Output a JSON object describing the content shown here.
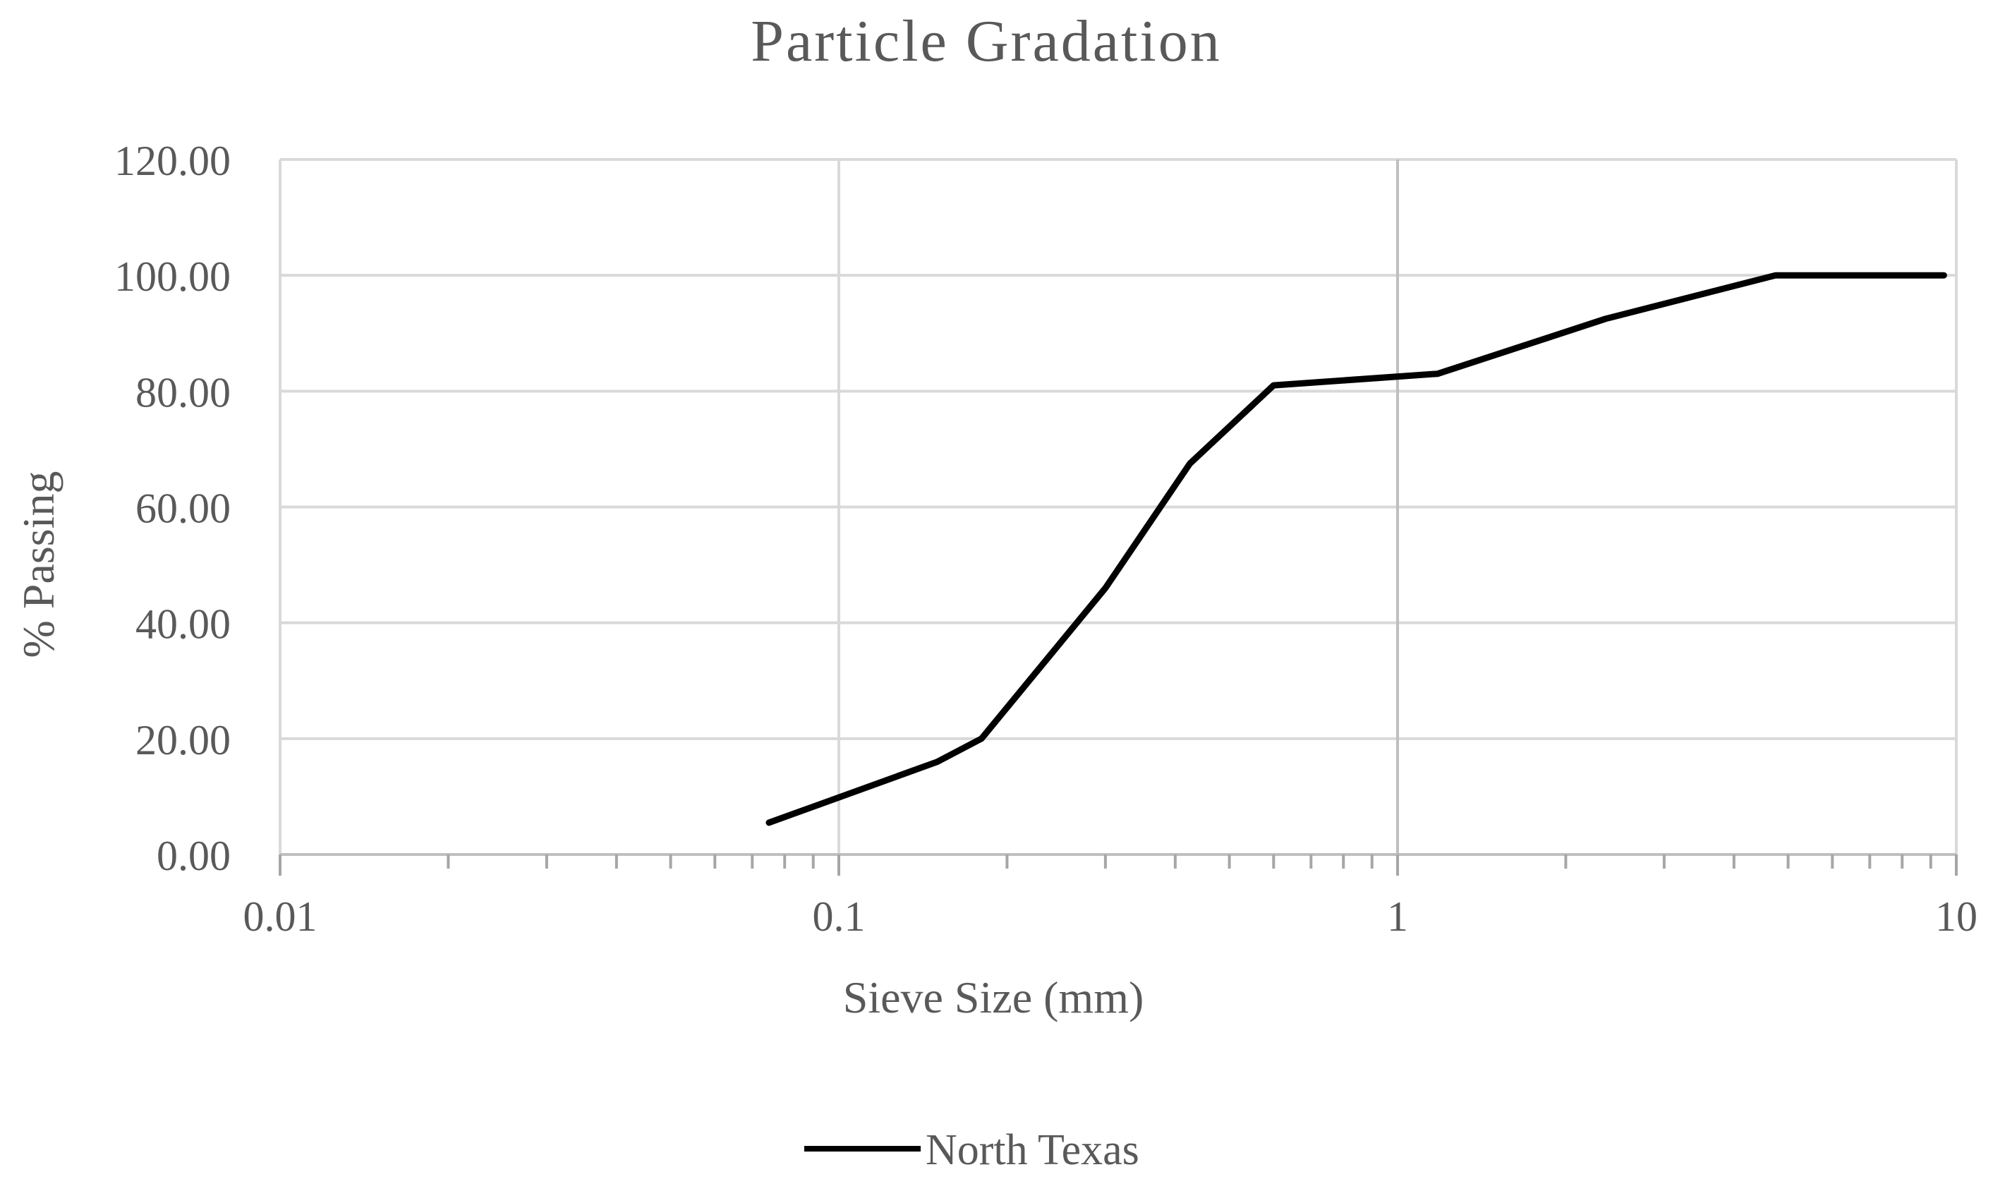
{
  "chart_data": {
    "type": "scatter",
    "title": "Particle Gradation",
    "xlabel": "Sieve Size (mm)",
    "ylabel": "% Passing",
    "x_scale": "log",
    "xlim": [
      0.01,
      10
    ],
    "ylim": [
      0,
      120
    ],
    "x_ticks": [
      0.01,
      0.1,
      1,
      10
    ],
    "x_tick_labels": [
      "0.01",
      "0.1",
      "1",
      "10"
    ],
    "y_ticks": [
      0,
      20,
      40,
      60,
      80,
      100,
      120
    ],
    "y_tick_labels": [
      "0.00",
      "20.00",
      "40.00",
      "60.00",
      "80.00",
      "100.00",
      "120.00"
    ],
    "grid": true,
    "legend_position": "bottom",
    "series": [
      {
        "name": "North Texas",
        "color": "#000000",
        "x": [
          0.075,
          0.15,
          0.18,
          0.3,
          0.425,
          0.6,
          1.18,
          2.36,
          4.75,
          9.5
        ],
        "y": [
          5.5,
          16,
          20,
          46,
          67.5,
          81,
          83,
          92.5,
          100,
          100
        ]
      }
    ]
  }
}
